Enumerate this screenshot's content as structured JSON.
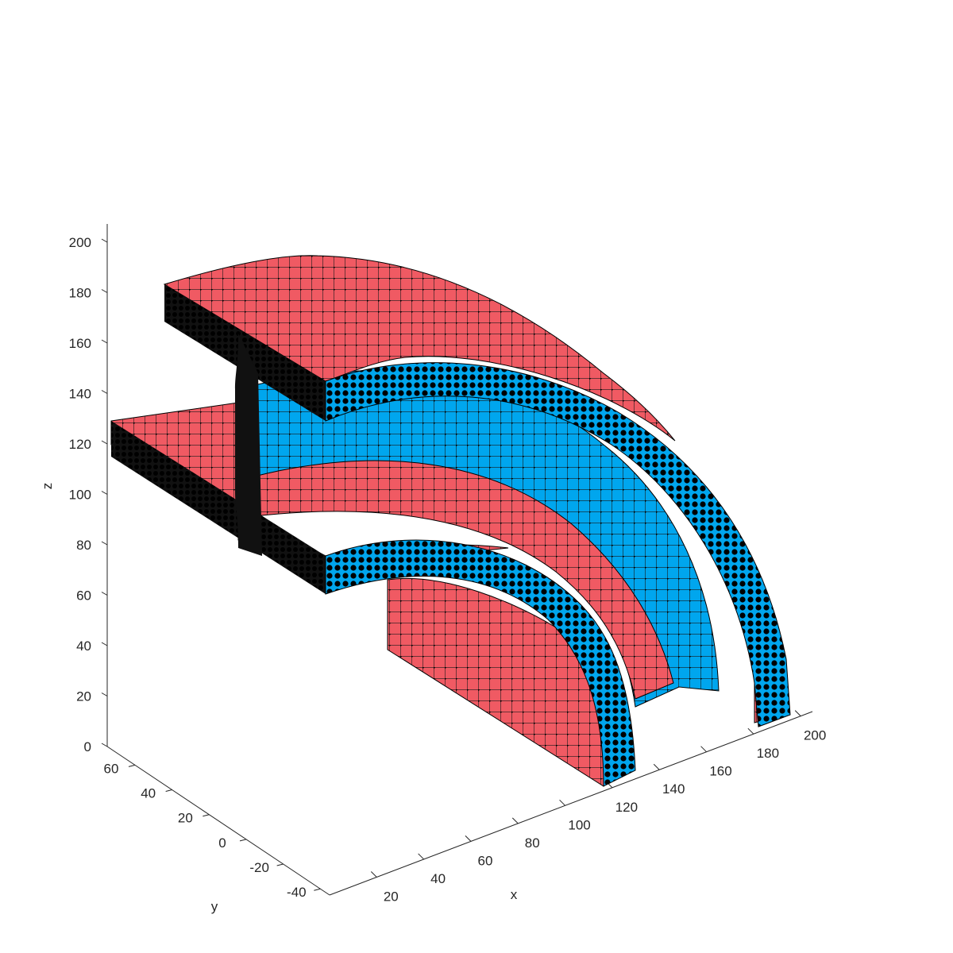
{
  "chart_data": {
    "type": "surface3d",
    "title": "",
    "xlabel": "x",
    "ylabel": "y",
    "zlabel": "z",
    "xlim": [
      0,
      205
    ],
    "ylim": [
      -45,
      75
    ],
    "zlim": [
      0,
      205
    ],
    "x_ticks": [
      "20",
      "40",
      "60",
      "80",
      "100",
      "120",
      "140",
      "160",
      "180",
      "200"
    ],
    "y_ticks": [
      "60",
      "40",
      "20",
      "0",
      "-20",
      "-40"
    ],
    "z_ticks": [
      "0",
      "20",
      "40",
      "60",
      "80",
      "100",
      "120",
      "140",
      "160",
      "180",
      "200"
    ],
    "grid": false,
    "colors": {
      "outer_face": "#f05a63",
      "inner_face": "#00a6ee",
      "mesh": "#000000",
      "axis": "#262626"
    },
    "geometry": "curved I-beam meshed solid (upper flange, web, lower flange) sweeping 90 degrees"
  }
}
